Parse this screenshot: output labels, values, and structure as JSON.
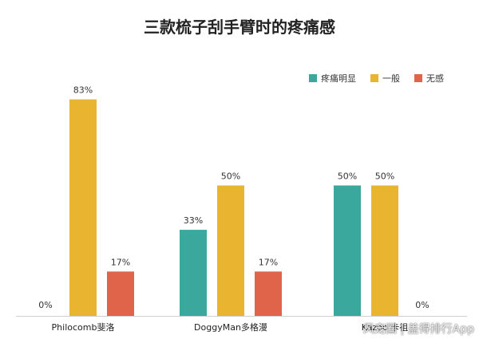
{
  "chart_data": {
    "type": "bar",
    "title": "三款梳子刮手臂时的疼痛感",
    "categories": [
      "Philocomb斐洛",
      "DoggyMan多格漫",
      "Kazoo 卡祖"
    ],
    "series": [
      {
        "name": "疼痛明显",
        "color": "#3aa89c",
        "values": [
          0,
          33,
          50
        ],
        "labels": [
          "0%",
          "33%",
          "50%"
        ]
      },
      {
        "name": "一般",
        "color": "#e9b530",
        "values": [
          83,
          50,
          50
        ],
        "labels": [
          "83%",
          "50%",
          "50%"
        ]
      },
      {
        "name": "无感",
        "color": "#e0644a",
        "values": [
          17,
          17,
          0
        ],
        "labels": [
          "17%",
          "17%",
          "0%"
        ]
      }
    ],
    "ylim": [
      0,
      100
    ],
    "grid": false,
    "legend_position": "top-right"
  },
  "watermark": "风宠圈 | 盖得排行App"
}
